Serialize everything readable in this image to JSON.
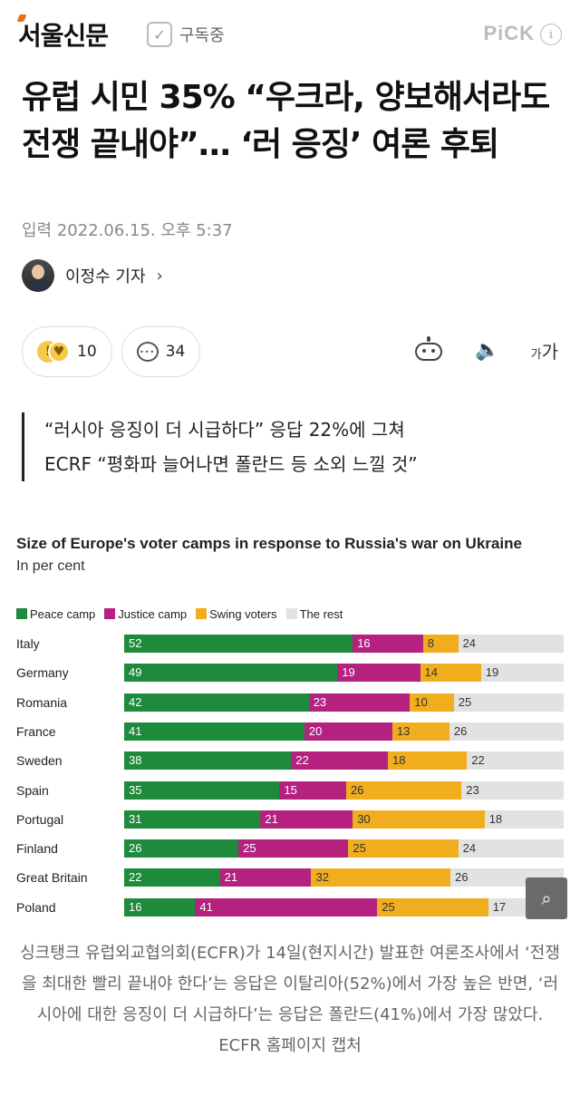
{
  "header": {
    "logo": "서울신문",
    "subscribe_check": "✓",
    "subscribe_label": "구독중",
    "pick_label": "PiCK",
    "info_glyph": "i"
  },
  "article": {
    "title": "유럽 시민 35% “우크라, 양보해서라도 전쟁 끝내야”… ‘러 응징’ 여론 후퇴",
    "date": "입력 2022.06.15. 오후 5:37",
    "author": "이정수 기자",
    "author_chevron": "›"
  },
  "reactions": {
    "emoji_a": "!",
    "emoji_b": "♥",
    "like_count": "10",
    "comment_count": "34"
  },
  "tools": {
    "speaker_glyph": "🔈",
    "font_small": "가",
    "font_large": "가"
  },
  "summary": [
    "“러시아 응징이 더 시급하다” 응답 22%에 그쳐",
    "ECRF “평화파 늘어나면 폴란드 등 소외 느낄 것”"
  ],
  "chart_data": {
    "type": "bar",
    "stacked": true,
    "title": "Size of Europe's voter camps in response to Russia's war on Ukraine",
    "subtitle": "In per cent",
    "legend_position": "top-left",
    "categories": [
      "Italy",
      "Germany",
      "Romania",
      "France",
      "Sweden",
      "Spain",
      "Portugal",
      "Finland",
      "Great Britain",
      "Poland"
    ],
    "series": [
      {
        "name": "Peace camp",
        "color": "#1e8a3c",
        "text_color": "#ffffff",
        "values": [
          52,
          49,
          42,
          41,
          38,
          35,
          31,
          26,
          22,
          16
        ]
      },
      {
        "name": "Justice camp",
        "color": "#b5217f",
        "text_color": "#ffffff",
        "values": [
          16,
          19,
          23,
          20,
          22,
          15,
          21,
          25,
          21,
          41
        ]
      },
      {
        "name": "Swing voters",
        "color": "#f0ad1e",
        "text_color": "#333333",
        "values": [
          8,
          14,
          10,
          13,
          18,
          26,
          30,
          25,
          32,
          25
        ]
      },
      {
        "name": "The rest",
        "color": "#e2e2e2",
        "text_color": "#333333",
        "values": [
          24,
          19,
          25,
          26,
          22,
          23,
          18,
          24,
          26,
          17
        ]
      }
    ]
  },
  "zoom_glyph": "⌕",
  "caption": "싱크탱크 유럽외교협의회(ECFR)가 14일(현지시간) 발표한 여론조사에서 ‘전쟁을 최대한 빨리 끝내야 한다’는 응답은 이탈리아(52%)에서 가장 높은 반면, ‘러시아에 대한 응징이 더 시급하다’는 응답은 폴란드(41%)에서 가장 많았다. ECFR 홈페이지 캡처"
}
